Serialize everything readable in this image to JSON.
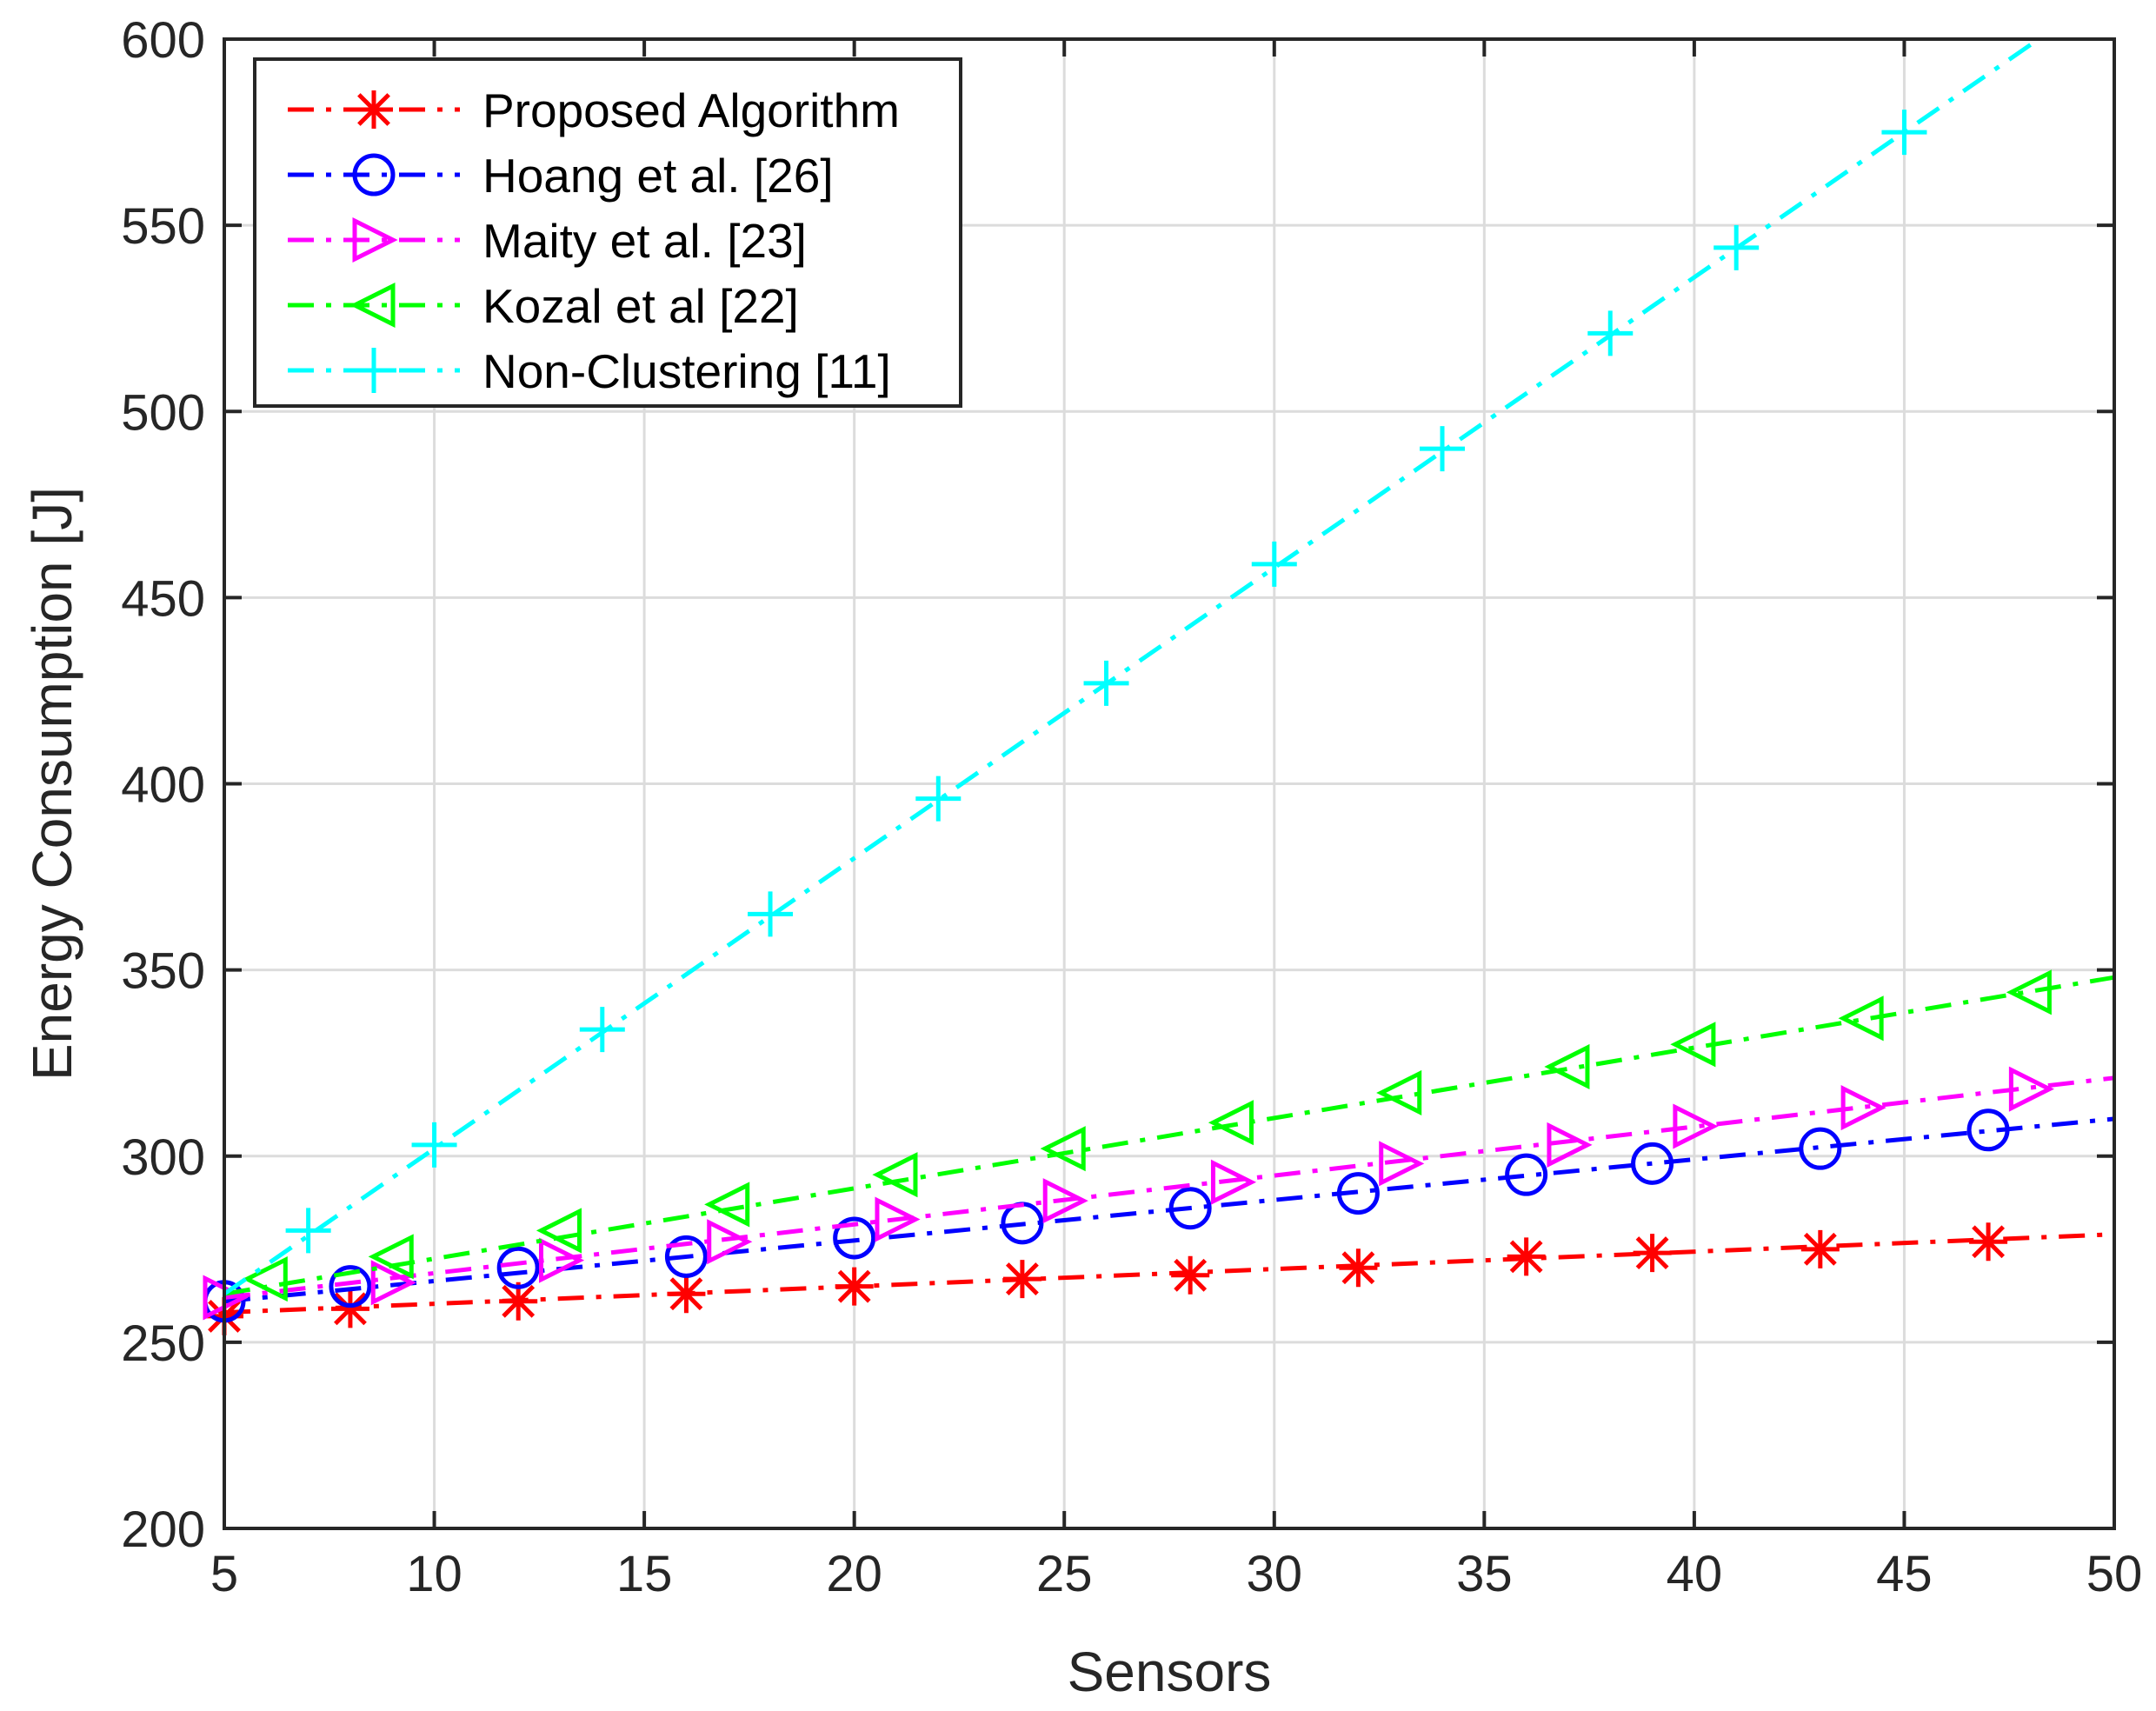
{
  "chart_data": {
    "type": "line",
    "title": "",
    "xlabel": "Sensors",
    "ylabel": "Energy Consumption [J]",
    "xlim": [
      5,
      50
    ],
    "ylim": [
      200,
      600
    ],
    "xticks": [
      5,
      10,
      15,
      20,
      25,
      30,
      35,
      40,
      45,
      50
    ],
    "yticks": [
      200,
      250,
      300,
      350,
      400,
      450,
      500,
      550,
      600
    ],
    "xtick_labels": [
      "5",
      "10",
      "15",
      "20",
      "25",
      "30",
      "35",
      "40",
      "45",
      "50"
    ],
    "ytick_labels": [
      "200",
      "250",
      "300",
      "350",
      "400",
      "450",
      "500",
      "550",
      "600"
    ],
    "grid": true,
    "legend_position": "top-left",
    "series": [
      {
        "name": "Proposed Algorithm",
        "color": "#ff0000",
        "marker": "asterisk",
        "line": [
          [
            5,
            258
          ],
          [
            50,
            279
          ]
        ],
        "points": [
          [
            5,
            257
          ],
          [
            8,
            259
          ],
          [
            12,
            261
          ],
          [
            16,
            263
          ],
          [
            20,
            265
          ],
          [
            24,
            267
          ],
          [
            28,
            268
          ],
          [
            32,
            270
          ],
          [
            36,
            273
          ],
          [
            39,
            274
          ],
          [
            43,
            275
          ],
          [
            47,
            277
          ]
        ]
      },
      {
        "name": "Hoang et al. [26]",
        "color": "#0000ff",
        "marker": "circle",
        "line": [
          [
            5,
            261
          ],
          [
            50,
            310
          ]
        ],
        "points": [
          [
            5,
            261
          ],
          [
            8,
            265
          ],
          [
            12,
            270
          ],
          [
            16,
            273
          ],
          [
            20,
            278
          ],
          [
            24,
            282
          ],
          [
            28,
            286
          ],
          [
            32,
            290
          ],
          [
            36,
            295
          ],
          [
            39,
            298
          ],
          [
            43,
            302
          ],
          [
            47,
            307
          ]
        ]
      },
      {
        "name": "Maity et al. [23]",
        "color": "#ff00ff",
        "marker": "triangle-right",
        "line": [
          [
            5,
            262
          ],
          [
            50,
            321
          ]
        ],
        "points": [
          [
            5,
            262
          ],
          [
            9,
            266
          ],
          [
            13,
            272
          ],
          [
            17,
            277
          ],
          [
            21,
            283
          ],
          [
            25,
            288
          ],
          [
            29,
            293
          ],
          [
            33,
            298
          ],
          [
            37,
            303
          ],
          [
            40,
            308
          ],
          [
            44,
            313
          ],
          [
            48,
            318
          ]
        ]
      },
      {
        "name": "Kozal et al [22]",
        "color": "#00ff00",
        "marker": "triangle-left",
        "line": [
          [
            5,
            263
          ],
          [
            50,
            348
          ]
        ],
        "points": [
          [
            6,
            267
          ],
          [
            9,
            273
          ],
          [
            13,
            280
          ],
          [
            17,
            287
          ],
          [
            21,
            295
          ],
          [
            25,
            302
          ],
          [
            29,
            309
          ],
          [
            33,
            317
          ],
          [
            37,
            324
          ],
          [
            40,
            330
          ],
          [
            44,
            337
          ],
          [
            48,
            344
          ]
        ]
      },
      {
        "name": "Non-Clustering [11]",
        "color": "#00ffff",
        "marker": "plus",
        "line": [
          [
            5,
            263
          ],
          [
            48.2,
            600
          ]
        ],
        "points": [
          [
            7,
            280
          ],
          [
            10,
            303
          ],
          [
            14,
            334
          ],
          [
            18,
            365
          ],
          [
            22,
            396
          ],
          [
            26,
            427
          ],
          [
            30,
            459
          ],
          [
            34,
            490
          ],
          [
            38,
            521
          ],
          [
            41,
            544
          ],
          [
            45,
            575
          ]
        ]
      }
    ]
  }
}
